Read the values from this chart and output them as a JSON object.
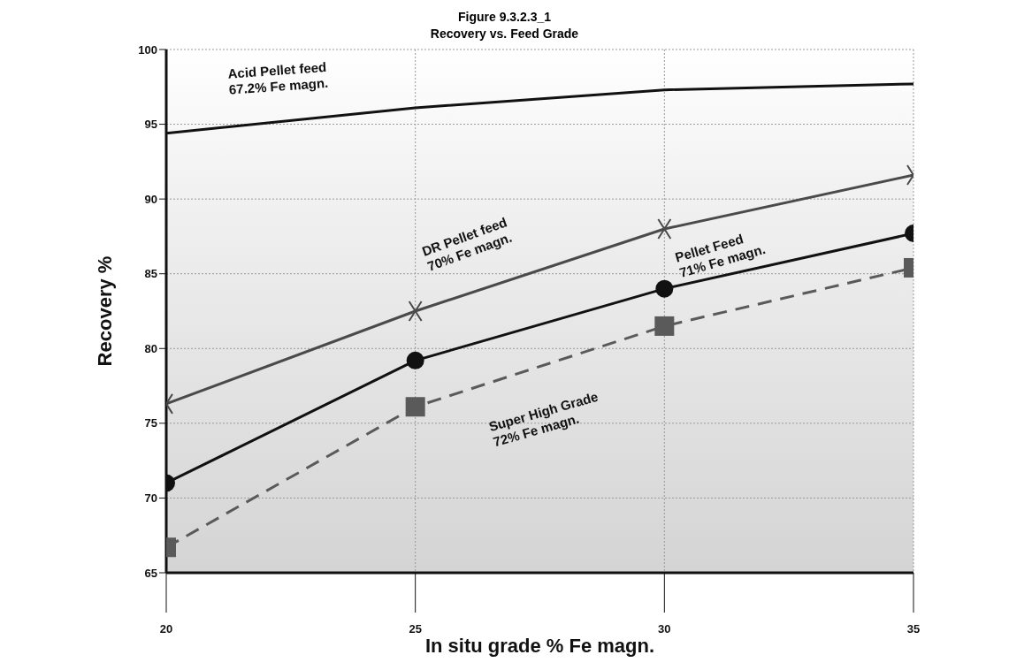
{
  "chart_data": {
    "type": "line",
    "title": "Figure 9.3.2.3_1",
    "subtitle": "Recovery vs. Feed Grade",
    "xlabel": "In situ grade % Fe magn.",
    "ylabel": "Recovery %",
    "x": [
      20,
      25,
      30,
      35
    ],
    "xlim": [
      20,
      35
    ],
    "xticks": [
      20,
      25,
      30,
      35
    ],
    "ylim": [
      65,
      100
    ],
    "yticks": [
      65,
      70,
      75,
      80,
      85,
      90,
      95,
      100
    ],
    "grid": true,
    "legend": false,
    "series": [
      {
        "name": "Acid Pellet feed\n67.2% Fe magn.",
        "color": "#111111",
        "marker": "none",
        "line_style": "solid",
        "values": [
          94.4,
          96.1,
          97.3,
          97.7
        ]
      },
      {
        "name": "DR Pellet feed\n70% Fe magn.",
        "color": "#4a4a4a",
        "marker": "cross",
        "line_style": "solid",
        "values": [
          76.3,
          82.5,
          88.0,
          91.6
        ]
      },
      {
        "name": "Pellet Feed\n71% Fe magn.",
        "color": "#111111",
        "marker": "circle",
        "line_style": "solid",
        "values": [
          71.0,
          79.2,
          84.0,
          87.7
        ]
      },
      {
        "name": "Super High Grade\n72% Fe magn.",
        "color": "#5a5a5a",
        "marker": "square",
        "line_style": "dashed",
        "values": [
          66.7,
          76.1,
          81.5,
          85.4
        ]
      }
    ]
  }
}
